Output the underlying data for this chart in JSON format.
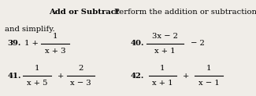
{
  "background_color": "#f0ede8",
  "title_bold": "Add or Subtract",
  "title_regular": "   Perform the addition or subtraction",
  "title_line2": "and simplify.",
  "problems": {
    "p39": {
      "num_label": "39.",
      "pre_text": "1 +",
      "frac1_num": "1",
      "frac1_den": "x + 3"
    },
    "p40": {
      "num_label": "40.",
      "frac1_num": "3x − 2",
      "frac1_den": "x + 1",
      "post_text": "− 2"
    },
    "p41": {
      "num_label": "41.",
      "frac1_num": "1",
      "frac1_den": "x + 5",
      "mid_text": "+",
      "frac2_num": "2",
      "frac2_den": "x − 3"
    },
    "p42": {
      "num_label": "42.",
      "frac1_num": "1",
      "frac1_den": "x + 1",
      "mid_text": "+",
      "frac2_num": "1",
      "frac2_den": "x − 1"
    }
  },
  "fontsize": 7.2,
  "fontsize_bold": 7.2
}
